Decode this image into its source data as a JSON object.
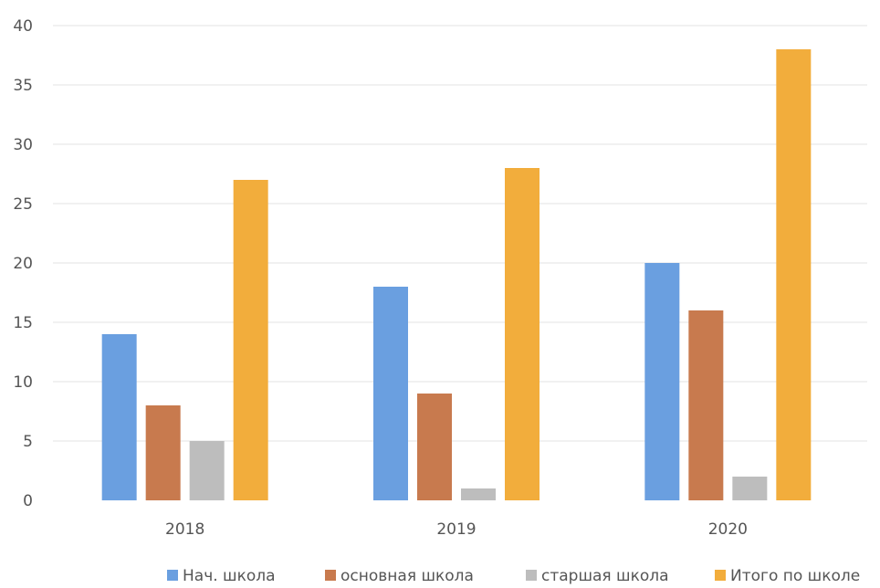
{
  "chart_data": {
    "type": "bar",
    "title": "",
    "xlabel": "",
    "ylabel": "",
    "categories": [
      "2018",
      "2019",
      "2020"
    ],
    "ylim": [
      0,
      40
    ],
    "yticks": [
      0,
      5,
      10,
      15,
      20,
      25,
      30,
      35,
      40
    ],
    "grid": true,
    "legend_position": "bottom",
    "series": [
      {
        "name": "Нач. школа",
        "color": "#6a9fe0",
        "values": [
          14,
          18,
          20
        ]
      },
      {
        "name": "основная школа",
        "color": "#c87a4e",
        "values": [
          8,
          9,
          16
        ]
      },
      {
        "name": "старшая школа",
        "color": "#bdbdbd",
        "values": [
          5,
          1,
          2
        ]
      },
      {
        "name": "Итого по школе",
        "color": "#f2ad3c",
        "values": [
          27,
          28,
          38
        ]
      }
    ]
  }
}
